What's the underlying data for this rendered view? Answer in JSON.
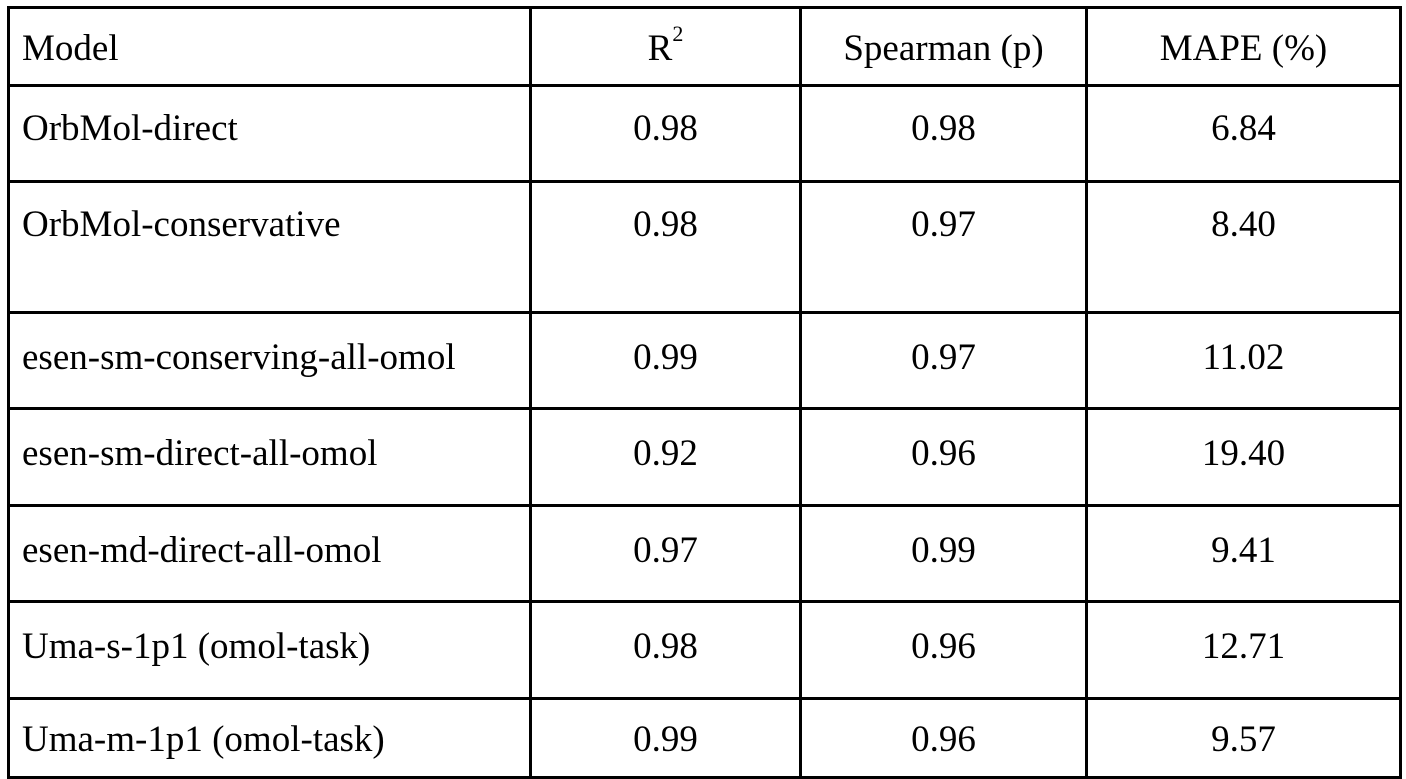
{
  "header": {
    "model": "Model",
    "r2_base": "R",
    "r2_sup": "2",
    "spearman": "Spearman (p)",
    "mape": "MAPE (%)"
  },
  "rows": [
    {
      "model": "OrbMol-direct",
      "r2": "0.98",
      "spearman": "0.98",
      "mape": "6.84"
    },
    {
      "model": "OrbMol-conservative",
      "r2": "0.98",
      "spearman": "0.97",
      "mape": "8.40"
    },
    {
      "model": "esen-sm-conserving-all-omol",
      "r2": "0.99",
      "spearman": "0.97",
      "mape": "11.02"
    },
    {
      "model": "esen-sm-direct-all-omol",
      "r2": "0.92",
      "spearman": "0.96",
      "mape": "19.40"
    },
    {
      "model": "esen-md-direct-all-omol",
      "r2": "0.97",
      "spearman": "0.99",
      "mape": "9.41"
    },
    {
      "model": "Uma-s-1p1 (omol-task)",
      "r2": "0.98",
      "spearman": "0.96",
      "mape": "12.71"
    },
    {
      "model": "Uma-m-1p1 (omol-task)",
      "r2": "0.99",
      "spearman": "0.96",
      "mape": "9.57"
    }
  ]
}
